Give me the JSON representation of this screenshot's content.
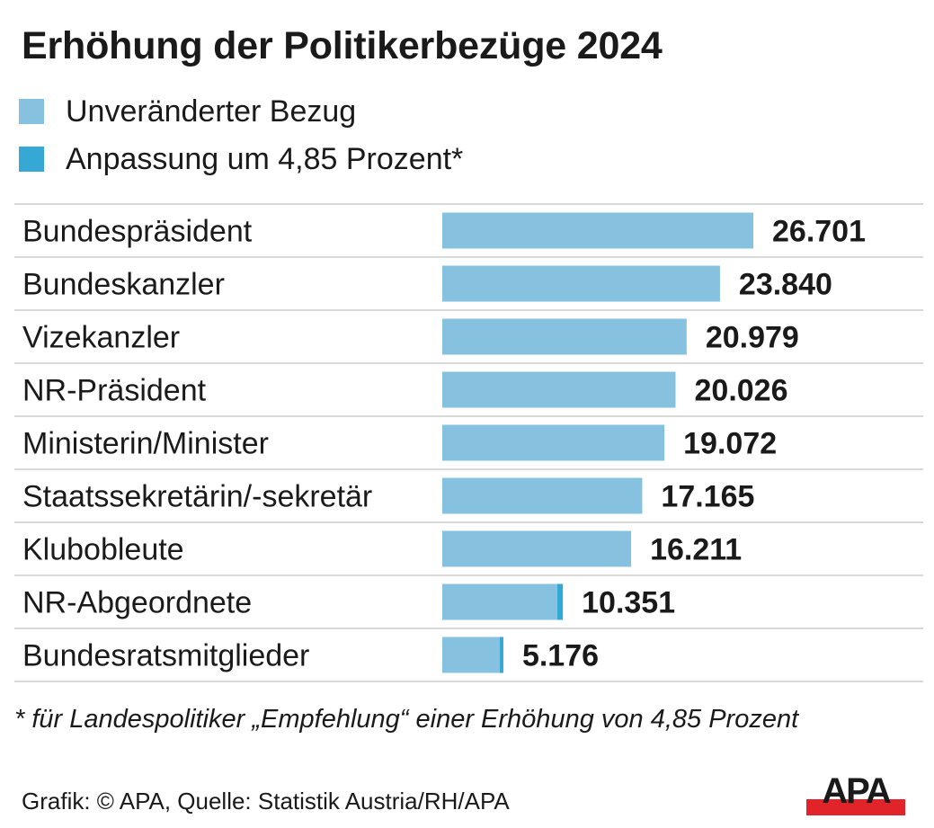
{
  "title": "Erhöhung der Politikerbezüge 2024",
  "legend": [
    {
      "label": "Unveränderter Bezug",
      "color": "#86c2e0"
    },
    {
      "label": "Anpassung um 4,85 Prozent*",
      "color": "#35a8d6"
    }
  ],
  "chart_data": {
    "type": "bar",
    "orientation": "horizontal",
    "stacked": true,
    "title": "Erhöhung der Politikerbezüge 2024",
    "xlabel": "",
    "ylabel": "",
    "grid": false,
    "legend_position": "top-left",
    "xlim": [
      0,
      26701
    ],
    "categories": [
      "Bundespräsident",
      "Bundeskanzler",
      "Vizekanzler",
      "NR-Präsident",
      "Ministerin/Minister",
      "Staatssekretärin/-sekretär",
      "Klubobleute",
      "NR-Abgeordnete",
      "Bundesratsmitglieder"
    ],
    "totals": [
      26701,
      23840,
      20979,
      20026,
      19072,
      17165,
      16211,
      10351,
      5176
    ],
    "value_labels": [
      "26.701",
      "23.840",
      "20.979",
      "20.026",
      "19.072",
      "17.165",
      "16.211",
      "10.351",
      "5.176"
    ],
    "series": [
      {
        "name": "Unveränderter Bezug",
        "color": "#86c2e0",
        "values": [
          26701,
          23840,
          20979,
          20026,
          19072,
          17165,
          16211,
          9872,
          4936
        ]
      },
      {
        "name": "Anpassung um 4,85 Prozent*",
        "color": "#35a8d6",
        "values": [
          0,
          0,
          0,
          0,
          0,
          0,
          0,
          479,
          240
        ]
      }
    ]
  },
  "footnote": "* für Landespolitiker „Empfehlung“ einer Erhöhung von 4,85 Prozent",
  "source": "Grafik: © APA, Quelle: Statistik Austria/RH/APA",
  "logo": {
    "text": "APA",
    "text_color": "#1a1a1a",
    "bar_color": "#e3232a"
  },
  "colors": {
    "separator": "#d9d9d9"
  }
}
